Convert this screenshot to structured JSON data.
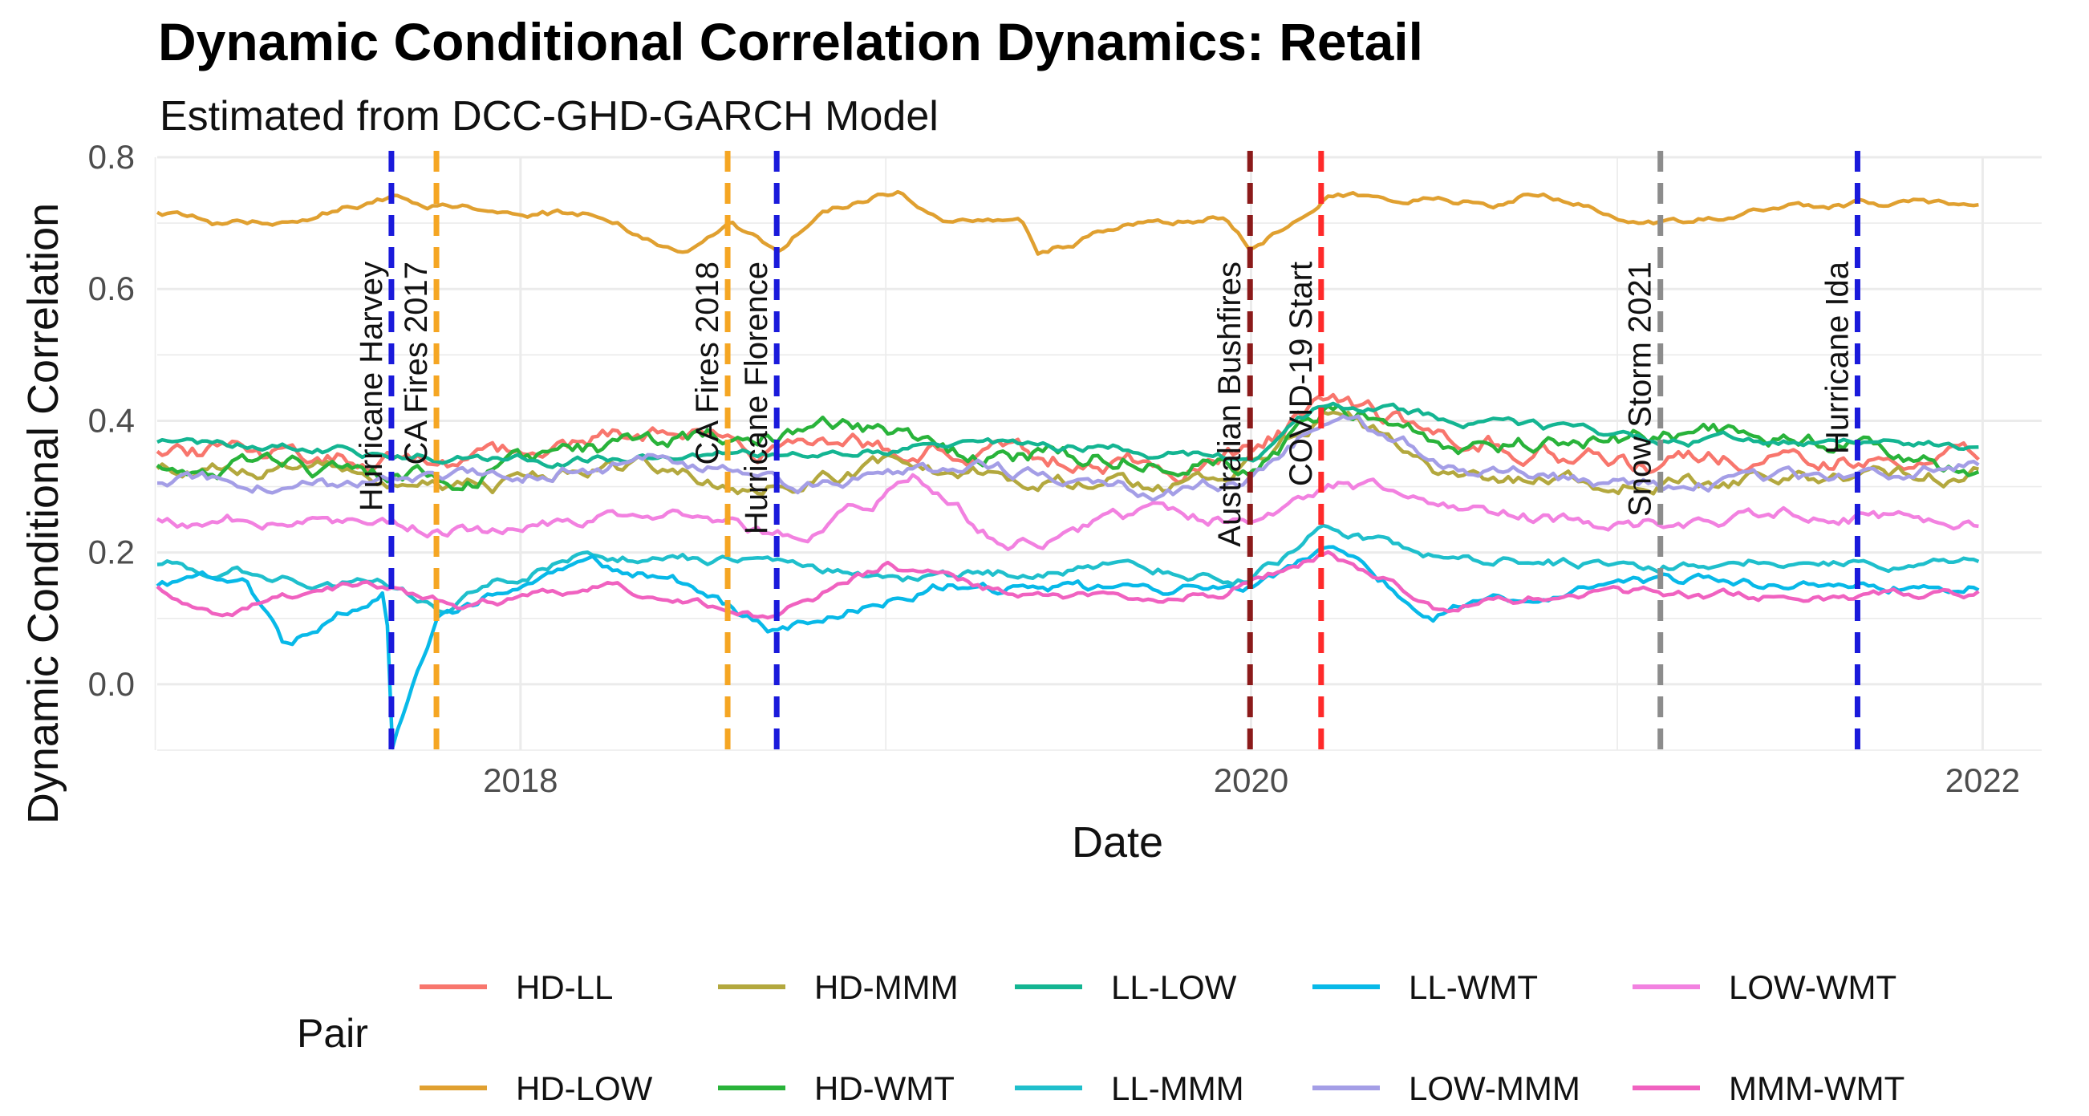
{
  "chart_data": {
    "type": "line",
    "title": "Dynamic Conditional Correlation Dynamics: Retail",
    "subtitle": "Estimated from DCC-GHD-GARCH Model",
    "xlabel": "Date",
    "ylabel": "Dynamic Conditional Correlation",
    "xlim": [
      "2017-01-03",
      "2022-03-01"
    ],
    "ylim": [
      -0.1,
      0.8
    ],
    "x_ticks": [
      "2018",
      "2020",
      "2022"
    ],
    "y_ticks": [
      "0.0",
      "0.2",
      "0.4",
      "0.6",
      "0.8"
    ],
    "grid": true,
    "legend": {
      "title": "Pair",
      "position": "bottom"
    },
    "events": [
      {
        "label": "Hurricane Harvey",
        "date": "2017-08-25",
        "color": "#1a1adb"
      },
      {
        "label": "CA Fires 2017",
        "date": "2017-10-09",
        "color": "#f5a623"
      },
      {
        "label": "CA Fires 2018",
        "date": "2018-07-27",
        "color": "#f5a623"
      },
      {
        "label": "Hurricane Florence",
        "date": "2018-09-14",
        "color": "#1a1adb"
      },
      {
        "label": "Australian Bushfires",
        "date": "2019-12-31",
        "color": "#8b1a1a"
      },
      {
        "label": "COVID-19 Start",
        "date": "2020-03-11",
        "color": "#ff2a2a"
      },
      {
        "label": "Snow Storm 2021",
        "date": "2021-02-13",
        "color": "#8c8c8c"
      },
      {
        "label": "Hurricane Ida",
        "date": "2021-08-29",
        "color": "#1a1adb"
      }
    ],
    "series": [
      {
        "name": "HD-LL",
        "color": "#f8766d",
        "base": 0.36,
        "noise": 0.022,
        "seed": 11,
        "x": [
          "2017-01-03",
          "2017-06-01",
          "2017-10-01",
          "2018-03-01",
          "2018-06-01",
          "2018-10-01",
          "2019-03-01",
          "2019-08-01",
          "2019-12-01",
          "2020-03-20",
          "2020-06-01",
          "2020-10-01",
          "2021-02-01",
          "2021-06-01",
          "2021-12-31"
        ],
        "values": [
          0.36,
          0.35,
          0.33,
          0.37,
          0.38,
          0.35,
          0.36,
          0.34,
          0.33,
          0.42,
          0.39,
          0.36,
          0.33,
          0.34,
          0.35
        ]
      },
      {
        "name": "HD-LOW",
        "color": "#e0a030",
        "base": 0.72,
        "noise": 0.008,
        "seed": 3,
        "x": [
          "2017-01-03",
          "2017-03-01",
          "2017-06-01",
          "2017-08-25",
          "2017-10-09",
          "2018-01-01",
          "2018-04-01",
          "2018-06-08",
          "2018-08-01",
          "2018-09-14",
          "2018-11-01",
          "2019-01-15",
          "2019-03-01",
          "2019-05-15",
          "2019-06-01",
          "2019-09-01",
          "2019-12-05",
          "2020-01-01",
          "2020-03-20",
          "2020-06-01",
          "2020-09-01",
          "2020-10-20",
          "2021-01-01",
          "2021-02-13",
          "2021-06-01",
          "2021-08-29",
          "2021-12-31"
        ],
        "values": [
          0.72,
          0.7,
          0.71,
          0.74,
          0.73,
          0.72,
          0.71,
          0.65,
          0.7,
          0.66,
          0.72,
          0.75,
          0.7,
          0.71,
          0.65,
          0.7,
          0.71,
          0.66,
          0.75,
          0.74,
          0.73,
          0.75,
          0.71,
          0.7,
          0.72,
          0.73,
          0.73
        ]
      },
      {
        "name": "HD-MMM",
        "color": "#b3a83e",
        "base": 0.32,
        "noise": 0.018,
        "seed": 17,
        "x": [
          "2017-01-03",
          "2017-07-01",
          "2017-12-01",
          "2018-04-01",
          "2018-09-01",
          "2019-01-01",
          "2019-06-01",
          "2019-12-01",
          "2020-03-20",
          "2020-07-01",
          "2020-12-01",
          "2021-05-01",
          "2021-12-31"
        ],
        "values": [
          0.33,
          0.32,
          0.3,
          0.34,
          0.3,
          0.33,
          0.31,
          0.3,
          0.42,
          0.33,
          0.3,
          0.31,
          0.32
        ]
      },
      {
        "name": "HD-WMT",
        "color": "#29b33a",
        "base": 0.34,
        "noise": 0.02,
        "seed": 23,
        "x": [
          "2017-01-03",
          "2017-06-01",
          "2017-11-01",
          "2018-03-01",
          "2018-06-01",
          "2018-12-01",
          "2019-04-01",
          "2019-10-01",
          "2020-01-01",
          "2020-03-20",
          "2020-08-01",
          "2020-12-01",
          "2021-04-01",
          "2021-10-01",
          "2021-12-31"
        ],
        "values": [
          0.34,
          0.33,
          0.31,
          0.35,
          0.37,
          0.39,
          0.35,
          0.35,
          0.33,
          0.42,
          0.36,
          0.37,
          0.38,
          0.36,
          0.31
        ]
      },
      {
        "name": "LL-LOW",
        "color": "#14b592",
        "base": 0.36,
        "noise": 0.01,
        "seed": 29,
        "x": [
          "2017-01-03",
          "2017-08-01",
          "2018-02-01",
          "2018-08-01",
          "2019-02-01",
          "2019-08-01",
          "2020-01-01",
          "2020-03-20",
          "2020-08-01",
          "2021-02-01",
          "2021-08-01",
          "2021-12-31"
        ],
        "values": [
          0.37,
          0.35,
          0.34,
          0.35,
          0.36,
          0.36,
          0.34,
          0.43,
          0.4,
          0.37,
          0.37,
          0.36
        ]
      },
      {
        "name": "LL-MMM",
        "color": "#1fbfcc",
        "base": 0.18,
        "noise": 0.012,
        "seed": 31,
        "x": [
          "2017-01-03",
          "2017-05-01",
          "2017-08-25",
          "2017-10-15",
          "2018-03-01",
          "2018-06-01",
          "2018-09-14",
          "2019-03-01",
          "2019-09-01",
          "2020-01-01",
          "2020-03-20",
          "2020-07-01",
          "2021-01-01",
          "2021-07-01",
          "2021-12-31"
        ],
        "values": [
          0.18,
          0.17,
          0.15,
          0.12,
          0.2,
          0.19,
          0.18,
          0.16,
          0.18,
          0.16,
          0.24,
          0.2,
          0.18,
          0.19,
          0.18
        ]
      },
      {
        "name": "LL-WMT",
        "color": "#08b9e8",
        "base": 0.15,
        "noise": 0.012,
        "seed": 37,
        "x": [
          "2017-01-03",
          "2017-04-01",
          "2017-05-10",
          "2017-08-20",
          "2017-08-25",
          "2017-10-09",
          "2018-03-01",
          "2018-06-01",
          "2018-09-14",
          "2019-03-01",
          "2019-09-01",
          "2020-01-01",
          "2020-03-20",
          "2020-07-01",
          "2021-01-01",
          "2021-07-01",
          "2021-12-31"
        ],
        "values": [
          0.15,
          0.17,
          0.06,
          0.14,
          -0.1,
          0.1,
          0.19,
          0.16,
          0.08,
          0.15,
          0.14,
          0.15,
          0.2,
          0.11,
          0.16,
          0.15,
          0.15
        ]
      },
      {
        "name": "LOW-MMM",
        "color": "#a49ee6",
        "base": 0.31,
        "noise": 0.015,
        "seed": 41,
        "x": [
          "2017-01-03",
          "2017-07-01",
          "2018-01-01",
          "2018-06-01",
          "2018-10-01",
          "2019-04-01",
          "2019-10-01",
          "2020-01-01",
          "2020-03-20",
          "2020-08-01",
          "2021-01-01",
          "2021-07-01",
          "2021-12-31"
        ],
        "values": [
          0.31,
          0.3,
          0.32,
          0.34,
          0.3,
          0.33,
          0.29,
          0.31,
          0.41,
          0.33,
          0.3,
          0.31,
          0.33
        ]
      },
      {
        "name": "LOW-WMT",
        "color": "#f281e0",
        "base": 0.25,
        "noise": 0.015,
        "seed": 43,
        "x": [
          "2017-01-03",
          "2017-07-01",
          "2017-12-01",
          "2018-06-01",
          "2018-10-01",
          "2019-02-01",
          "2019-05-01",
          "2019-10-01",
          "2020-01-01",
          "2020-03-20",
          "2020-08-01",
          "2021-01-01",
          "2021-07-01",
          "2021-12-31"
        ],
        "values": [
          0.25,
          0.25,
          0.23,
          0.27,
          0.22,
          0.31,
          0.21,
          0.26,
          0.25,
          0.31,
          0.26,
          0.24,
          0.26,
          0.24
        ]
      },
      {
        "name": "MMM-WMT",
        "color": "#f062c0",
        "base": 0.13,
        "noise": 0.01,
        "seed": 47,
        "x": [
          "2017-01-03",
          "2017-03-01",
          "2017-08-01",
          "2017-11-01",
          "2018-04-01",
          "2018-09-01",
          "2019-01-01",
          "2019-06-01",
          "2019-12-01",
          "2020-03-20",
          "2020-07-01",
          "2021-01-01",
          "2021-07-01",
          "2021-12-31"
        ],
        "values": [
          0.15,
          0.11,
          0.15,
          0.12,
          0.15,
          0.1,
          0.18,
          0.13,
          0.14,
          0.2,
          0.12,
          0.14,
          0.13,
          0.14
        ]
      }
    ]
  }
}
